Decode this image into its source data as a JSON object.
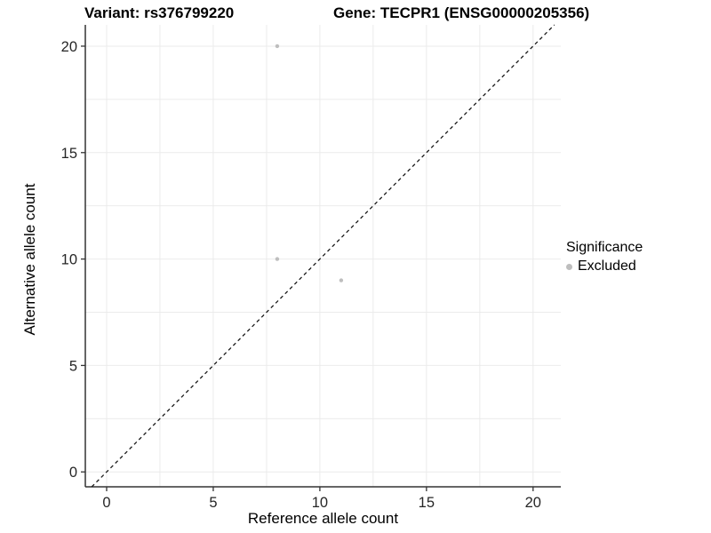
{
  "chart_data": {
    "type": "scatter",
    "title_left": "Variant: rs376799220",
    "title_right": "Gene: TECPR1 (ENSG00000205356)",
    "xlabel": "Reference allele count",
    "ylabel": "Alternative allele count",
    "xlim": [
      -1,
      21.3
    ],
    "ylim": [
      -0.7,
      21
    ],
    "xticks": [
      0,
      5,
      10,
      15,
      20
    ],
    "yticks": [
      0,
      5,
      10,
      15,
      20
    ],
    "grid": true,
    "minor_grid_step": 2.5,
    "legend_position": "right",
    "series": [
      {
        "name": "Excluded",
        "color": "#bebebe",
        "points": [
          {
            "x": 8,
            "y": 20
          },
          {
            "x": 8,
            "y": 10
          },
          {
            "x": 11,
            "y": 9
          }
        ]
      }
    ],
    "reference_line": {
      "slope": 1,
      "intercept": 0,
      "style": "dashed",
      "color": "#1a1a1a"
    }
  },
  "legend": {
    "title": "Significance",
    "items": [
      {
        "label": "Excluded",
        "color": "#bebebe"
      }
    ]
  },
  "colors": {
    "background": "#ffffff",
    "grid": "#ebebeb",
    "axis_line": "#333333",
    "tick_text": "#262626",
    "title_text": "#000000",
    "point": "#bebebe"
  }
}
